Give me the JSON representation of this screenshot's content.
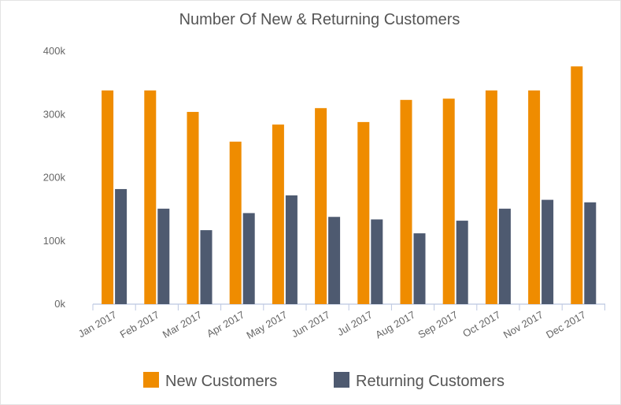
{
  "chart_data": {
    "type": "bar",
    "title": "Number Of New & Returning Customers",
    "categories": [
      "Jan 2017",
      "Feb 2017",
      "Mar 2017",
      "Apr 2017",
      "May 2017",
      "Jun 2017",
      "Jul 2017",
      "Aug 2017",
      "Sep 2017",
      "Oct 2017",
      "Nov 2017",
      "Dec 2017"
    ],
    "series": [
      {
        "name": "New Customers",
        "color": "#ef8c00",
        "values": [
          338000,
          338000,
          304000,
          257000,
          284000,
          310000,
          288000,
          323000,
          325000,
          338000,
          338000,
          376000
        ]
      },
      {
        "name": "Returning Customers",
        "color": "#4e5a70",
        "values": [
          182000,
          151000,
          117000,
          144000,
          172000,
          138000,
          134000,
          112000,
          132000,
          151000,
          165000,
          161000
        ]
      }
    ],
    "ylim": [
      0,
      400000
    ],
    "yticks": [
      {
        "value": 0,
        "label": "0k"
      },
      {
        "value": 100000,
        "label": "100k"
      },
      {
        "value": 200000,
        "label": "200k"
      },
      {
        "value": 300000,
        "label": "300k"
      },
      {
        "value": 400000,
        "label": "400k"
      }
    ],
    "xlabel": "",
    "ylabel": "",
    "grid": false,
    "legend_position": "bottom"
  }
}
